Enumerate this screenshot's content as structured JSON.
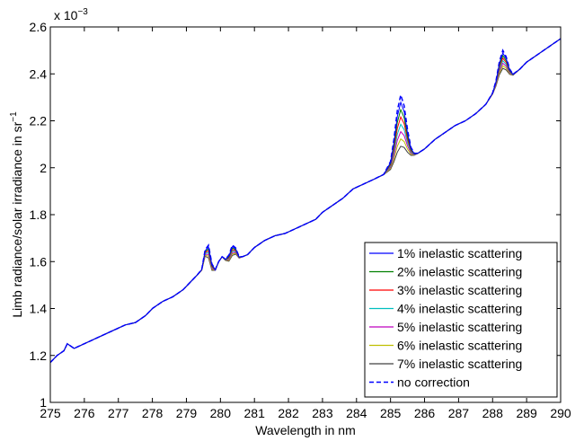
{
  "chart_data": {
    "type": "line",
    "xlabel": "Wavelength in nm",
    "ylabel": "Limb radiance/solar irradiance in sr",
    "ylabel_superscript": "−1",
    "y_exponent_base": "x 10",
    "y_exponent": "−3",
    "xlim": [
      275,
      290
    ],
    "ylim": [
      1.0,
      2.6
    ],
    "xticks": [
      "275",
      "276",
      "277",
      "278",
      "279",
      "280",
      "281",
      "282",
      "283",
      "284",
      "285",
      "286",
      "287",
      "288",
      "289",
      "290"
    ],
    "yticks": [
      "1",
      "1.2",
      "1.4",
      "1.6",
      "1.8",
      "2",
      "2.2",
      "2.4",
      "2.6"
    ],
    "grid": false,
    "legend_position": "bottom-right",
    "base_x": [
      275.0,
      275.2,
      275.4,
      275.5,
      275.7,
      276.0,
      276.3,
      276.6,
      276.9,
      277.2,
      277.5,
      277.8,
      278.0,
      278.3,
      278.6,
      278.9,
      279.1,
      279.3,
      279.45,
      279.55,
      279.65,
      279.75,
      279.85,
      279.95,
      280.05,
      280.15,
      280.25,
      280.35,
      280.45,
      280.55,
      280.65,
      280.8,
      281.0,
      281.3,
      281.6,
      281.9,
      282.2,
      282.5,
      282.8,
      283.0,
      283.3,
      283.6,
      283.9,
      284.2,
      284.5,
      284.8,
      285.0,
      285.1,
      285.2,
      285.3,
      285.4,
      285.5,
      285.6,
      285.7,
      285.8,
      286.0,
      286.3,
      286.6,
      286.9,
      287.2,
      287.5,
      287.8,
      288.0,
      288.1,
      288.2,
      288.3,
      288.4,
      288.5,
      288.6,
      288.8,
      289.0,
      289.3,
      289.6,
      290.0
    ],
    "base_y": [
      1.17,
      1.2,
      1.22,
      1.25,
      1.23,
      1.25,
      1.27,
      1.29,
      1.31,
      1.33,
      1.34,
      1.37,
      1.4,
      1.43,
      1.45,
      1.48,
      1.51,
      1.54,
      1.56,
      1.6,
      1.57,
      1.54,
      1.56,
      1.6,
      1.62,
      1.6,
      1.58,
      1.59,
      1.61,
      1.61,
      1.62,
      1.63,
      1.66,
      1.69,
      1.71,
      1.72,
      1.74,
      1.76,
      1.78,
      1.81,
      1.84,
      1.87,
      1.91,
      1.93,
      1.95,
      1.97,
      1.98,
      1.99,
      2.0,
      2.01,
      2.02,
      2.03,
      2.04,
      2.05,
      2.06,
      2.08,
      2.12,
      2.15,
      2.18,
      2.2,
      2.23,
      2.27,
      2.31,
      2.33,
      2.35,
      2.36,
      2.37,
      2.38,
      2.39,
      2.42,
      2.45,
      2.48,
      2.51,
      2.55
    ],
    "peak_shift_per_percent": 0.065,
    "series": [
      {
        "name": "1% inelastic scattering",
        "percent": 1,
        "color": "#0000ff",
        "dashed": false
      },
      {
        "name": "2% inelastic scattering",
        "percent": 2,
        "color": "#008000",
        "dashed": false
      },
      {
        "name": "3% inelastic scattering",
        "percent": 3,
        "color": "#ff0000",
        "dashed": false
      },
      {
        "name": "4% inelastic scattering",
        "percent": 4,
        "color": "#00bfbf",
        "dashed": false
      },
      {
        "name": "5% inelastic scattering",
        "percent": 5,
        "color": "#bf00bf",
        "dashed": false
      },
      {
        "name": "6% inelastic scattering",
        "percent": 6,
        "color": "#bfbf00",
        "dashed": false
      },
      {
        "name": "7% inelastic scattering",
        "percent": 7,
        "color": "#404040",
        "dashed": false
      },
      {
        "name": "no correction",
        "percent": 0,
        "color": "#0000ff",
        "dashed": true
      }
    ],
    "peaks": [
      {
        "center": 279.65,
        "width": 0.12,
        "amp": 0.1
      },
      {
        "center": 280.35,
        "width": 0.14,
        "amp": 0.08
      },
      {
        "center": 285.3,
        "width": 0.22,
        "amp": 0.3
      },
      {
        "center": 288.3,
        "width": 0.18,
        "amp": 0.14
      }
    ]
  }
}
